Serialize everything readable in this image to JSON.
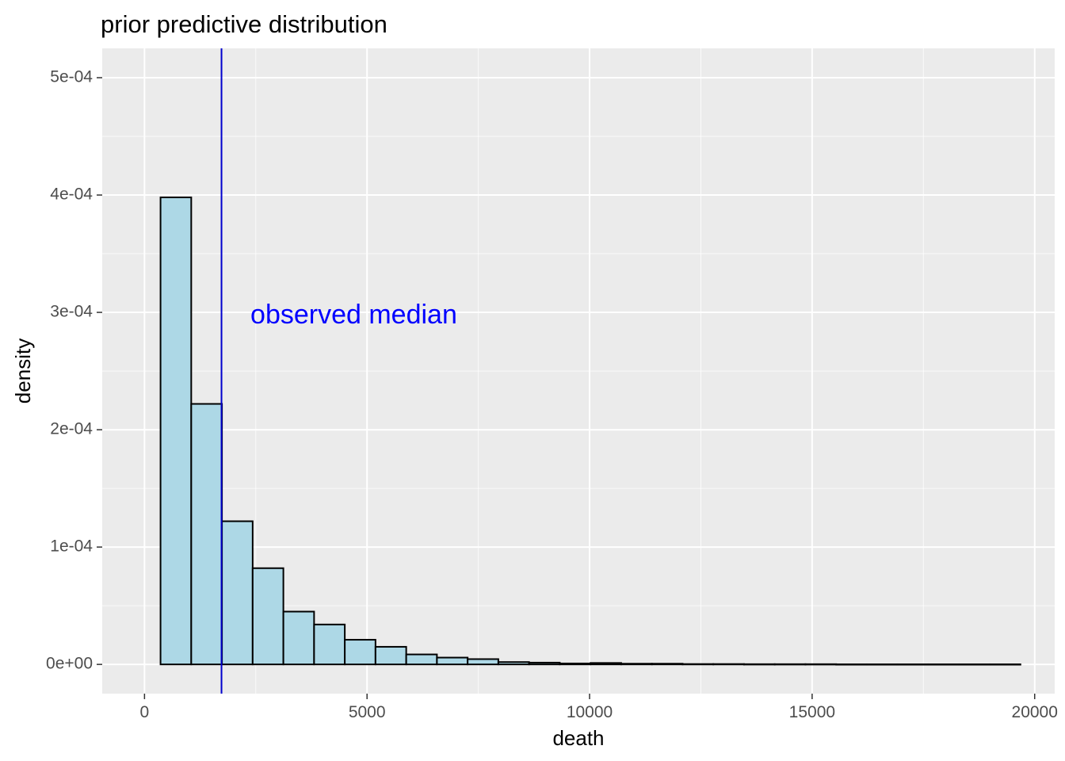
{
  "chart_data": {
    "type": "bar",
    "title": "prior predictive distribution",
    "xlabel": "death",
    "ylabel": "density",
    "xlim": [
      -950,
      20450
    ],
    "ylim": [
      -2.49e-05,
      0.000525
    ],
    "grid": true,
    "x_ticks": [
      0,
      5000,
      10000,
      15000,
      20000
    ],
    "x_tick_labels": [
      "0",
      "5000",
      "10000",
      "15000",
      "20000"
    ],
    "y_ticks": [
      0,
      0.0001,
      0.0002,
      0.0003,
      0.0004,
      0.0005
    ],
    "y_tick_labels": [
      "0e+00",
      "1e-04",
      "2e-04",
      "3e-04",
      "4e-04",
      "5e-04"
    ],
    "bin_width": 690,
    "bins": [
      {
        "x0": 360,
        "x1": 1050,
        "value": 0.000398
      },
      {
        "x0": 1050,
        "x1": 1740,
        "value": 0.000222
      },
      {
        "x0": 1740,
        "x1": 2430,
        "value": 0.000122
      },
      {
        "x0": 2430,
        "x1": 3120,
        "value": 8.2e-05
      },
      {
        "x0": 3120,
        "x1": 3810,
        "value": 4.5e-05
      },
      {
        "x0": 3810,
        "x1": 4500,
        "value": 3.4e-05
      },
      {
        "x0": 4500,
        "x1": 5190,
        "value": 2.1e-05
      },
      {
        "x0": 5190,
        "x1": 5880,
        "value": 1.5e-05
      },
      {
        "x0": 5880,
        "x1": 6570,
        "value": 8.5e-06
      },
      {
        "x0": 6570,
        "x1": 7260,
        "value": 5.8e-06
      },
      {
        "x0": 7260,
        "x1": 7950,
        "value": 4.5e-06
      },
      {
        "x0": 7950,
        "x1": 8640,
        "value": 2e-06
      },
      {
        "x0": 8640,
        "x1": 9330,
        "value": 1.5e-06
      },
      {
        "x0": 9330,
        "x1": 10020,
        "value": 8e-07
      },
      {
        "x0": 10020,
        "x1": 10710,
        "value": 1.2e-06
      },
      {
        "x0": 10710,
        "x1": 11400,
        "value": 6e-07
      },
      {
        "x0": 11400,
        "x1": 12090,
        "value": 6e-07
      },
      {
        "x0": 12090,
        "x1": 12780,
        "value": 3e-07
      },
      {
        "x0": 12780,
        "x1": 13470,
        "value": 3e-07
      },
      {
        "x0": 13470,
        "x1": 14160,
        "value": 2e-07
      },
      {
        "x0": 14160,
        "x1": 14850,
        "value": 2e-07
      },
      {
        "x0": 14850,
        "x1": 15540,
        "value": 2e-07
      },
      {
        "x0": 15540,
        "x1": 16230,
        "value": 1e-07
      },
      {
        "x0": 16230,
        "x1": 16920,
        "value": 1e-07
      },
      {
        "x0": 16920,
        "x1": 17610,
        "value": 1e-07
      },
      {
        "x0": 17610,
        "x1": 18300,
        "value": 1e-07
      },
      {
        "x0": 18300,
        "x1": 18990,
        "value": 1e-07
      },
      {
        "x0": 18990,
        "x1": 19680,
        "value": 1e-07
      }
    ],
    "vline": {
      "x": 1730,
      "label": "observed median",
      "label_x": 2380,
      "label_y": 0.0002965
    },
    "colors": {
      "panel": "#EBEBEB",
      "grid_major": "#FFFFFF",
      "bar_fill": "#ADD8E6",
      "bar_stroke": "#000000",
      "vline": "#0000CD",
      "annotation": "#0000FF",
      "tick_text": "#4D4D4D",
      "title_text": "#000000"
    }
  }
}
